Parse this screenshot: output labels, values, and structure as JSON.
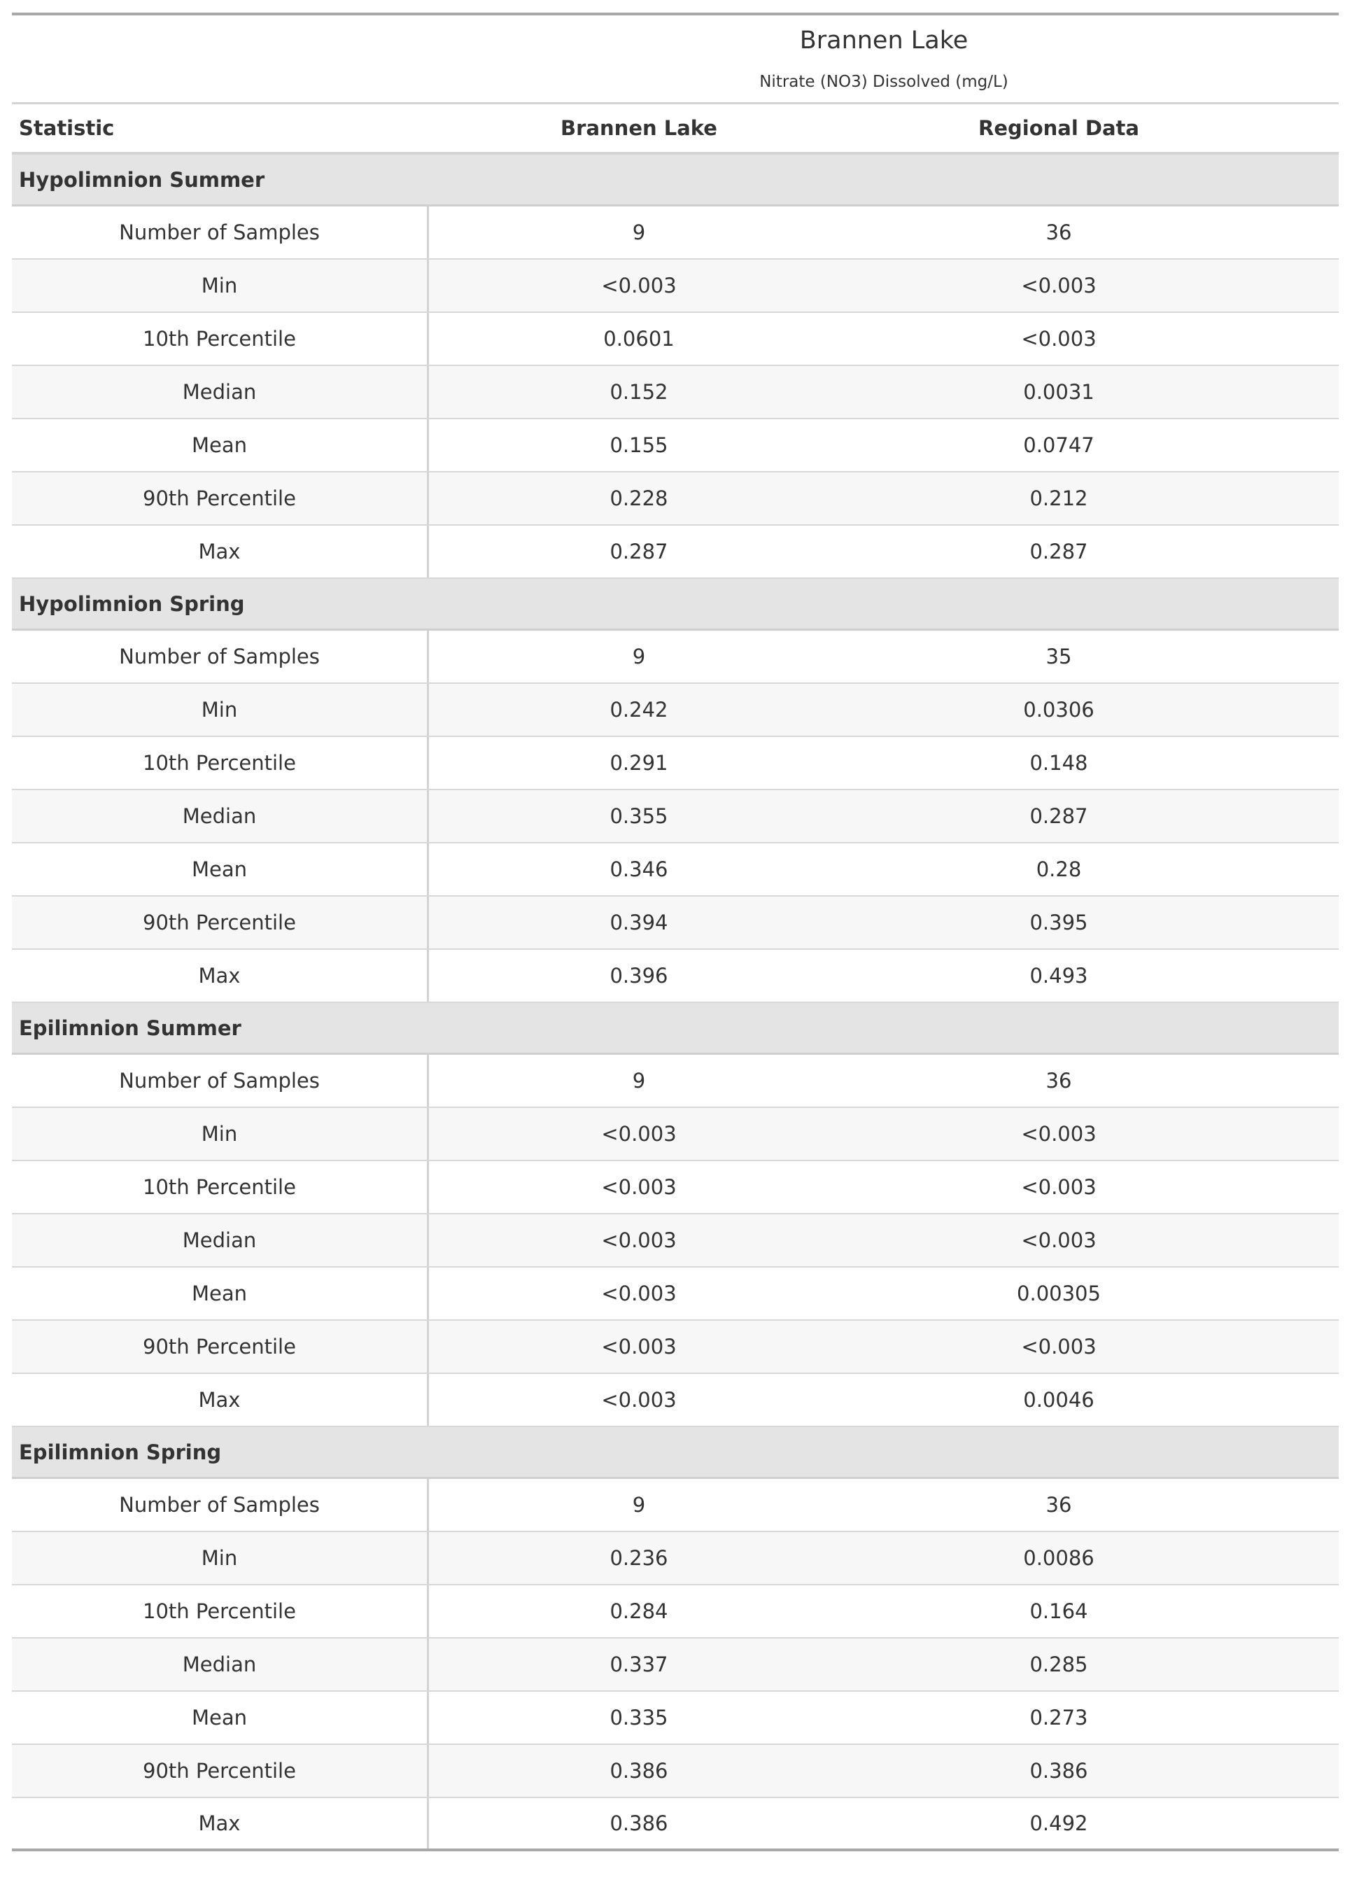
{
  "title": "Brannen Lake",
  "subtitle": "Nitrate (NO3) Dissolved (mg/L)",
  "headers": {
    "statistic": "Statistic",
    "col1": "Brannen Lake",
    "col2": "Regional Data"
  },
  "groups": [
    {
      "label": "Hypolimnion Summer",
      "rows": [
        {
          "stat": "Number of Samples",
          "lake": "9",
          "regional": "36"
        },
        {
          "stat": "Min",
          "lake": "<0.003",
          "regional": "<0.003"
        },
        {
          "stat": "10th Percentile",
          "lake": "0.0601",
          "regional": "<0.003"
        },
        {
          "stat": "Median",
          "lake": "0.152",
          "regional": "0.0031"
        },
        {
          "stat": "Mean",
          "lake": "0.155",
          "regional": "0.0747"
        },
        {
          "stat": "90th Percentile",
          "lake": "0.228",
          "regional": "0.212"
        },
        {
          "stat": "Max",
          "lake": "0.287",
          "regional": "0.287"
        }
      ]
    },
    {
      "label": "Hypolimnion Spring",
      "rows": [
        {
          "stat": "Number of Samples",
          "lake": "9",
          "regional": "35"
        },
        {
          "stat": "Min",
          "lake": "0.242",
          "regional": "0.0306"
        },
        {
          "stat": "10th Percentile",
          "lake": "0.291",
          "regional": "0.148"
        },
        {
          "stat": "Median",
          "lake": "0.355",
          "regional": "0.287"
        },
        {
          "stat": "Mean",
          "lake": "0.346",
          "regional": "0.28"
        },
        {
          "stat": "90th Percentile",
          "lake": "0.394",
          "regional": "0.395"
        },
        {
          "stat": "Max",
          "lake": "0.396",
          "regional": "0.493"
        }
      ]
    },
    {
      "label": "Epilimnion Summer",
      "rows": [
        {
          "stat": "Number of Samples",
          "lake": "9",
          "regional": "36"
        },
        {
          "stat": "Min",
          "lake": "<0.003",
          "regional": "<0.003"
        },
        {
          "stat": "10th Percentile",
          "lake": "<0.003",
          "regional": "<0.003"
        },
        {
          "stat": "Median",
          "lake": "<0.003",
          "regional": "<0.003"
        },
        {
          "stat": "Mean",
          "lake": "<0.003",
          "regional": "0.00305"
        },
        {
          "stat": "90th Percentile",
          "lake": "<0.003",
          "regional": "<0.003"
        },
        {
          "stat": "Max",
          "lake": "<0.003",
          "regional": "0.0046"
        }
      ]
    },
    {
      "label": "Epilimnion Spring",
      "rows": [
        {
          "stat": "Number of Samples",
          "lake": "9",
          "regional": "36"
        },
        {
          "stat": "Min",
          "lake": "0.236",
          "regional": "0.0086"
        },
        {
          "stat": "10th Percentile",
          "lake": "0.284",
          "regional": "0.164"
        },
        {
          "stat": "Median",
          "lake": "0.337",
          "regional": "0.285"
        },
        {
          "stat": "Mean",
          "lake": "0.335",
          "regional": "0.273"
        },
        {
          "stat": "90th Percentile",
          "lake": "0.386",
          "regional": "0.386"
        },
        {
          "stat": "Max",
          "lake": "0.386",
          "regional": "0.492"
        }
      ]
    }
  ]
}
